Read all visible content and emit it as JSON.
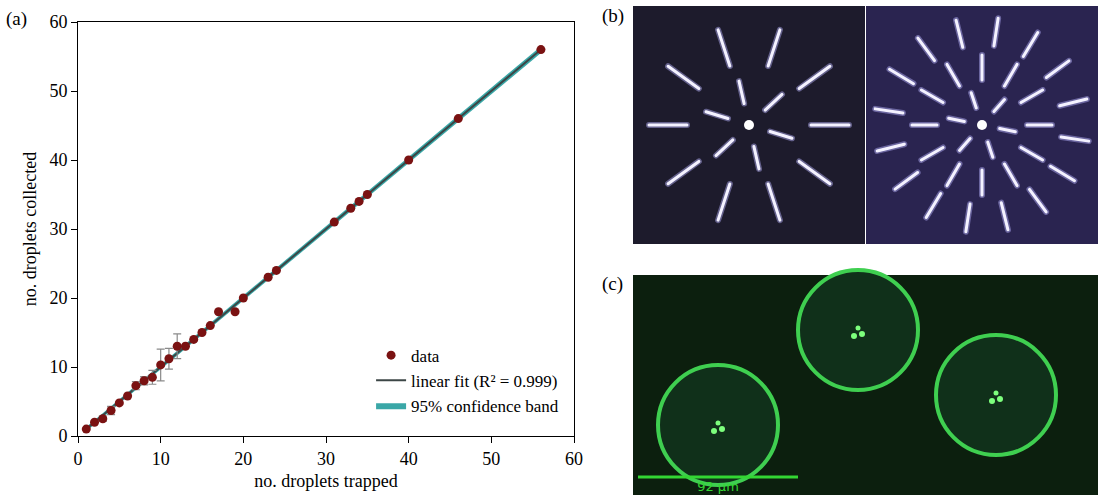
{
  "chart_data": {
    "type": "scatter",
    "annotations": [
      "(a)"
    ],
    "x_label": "no. droplets trapped",
    "y_label": "no. droplets collected",
    "xlim": [
      0,
      60
    ],
    "ylim": [
      0,
      60
    ],
    "xticks": [
      0,
      10,
      20,
      30,
      40,
      50,
      60
    ],
    "yticks": [
      0,
      10,
      20,
      30,
      40,
      50,
      60
    ],
    "grid": false,
    "legend": "bottom right",
    "series": [
      {
        "name": "data",
        "type": "scatter",
        "marker": "circle",
        "color": "#7a1212",
        "x": [
          1,
          2,
          3,
          4,
          5,
          6,
          7,
          8,
          9,
          10,
          11,
          12,
          13,
          14,
          15,
          16,
          17,
          19,
          20,
          23,
          24,
          31,
          33,
          34,
          35,
          40,
          46,
          56
        ],
        "values": [
          1,
          2,
          2.5,
          3.7,
          4.8,
          5.8,
          7.3,
          8,
          8.5,
          10.3,
          11.2,
          13,
          13,
          14,
          15,
          16,
          18,
          18,
          20,
          23,
          24,
          31,
          33,
          34,
          35,
          40,
          46,
          56
        ],
        "error": [
          null,
          null,
          0.4,
          0.6,
          null,
          null,
          0.6,
          0.6,
          1,
          2.3,
          1.5,
          1.8,
          null,
          null,
          null,
          null,
          null,
          null,
          null,
          null,
          null,
          null,
          null,
          null,
          null,
          null,
          null,
          null
        ]
      },
      {
        "name": "linear fit (R² = 0.999)",
        "type": "line",
        "line_style": "solid",
        "color": "#3c4646",
        "x": [
          1,
          56
        ],
        "values": [
          1,
          56
        ]
      },
      {
        "name": "95% confidence band",
        "type": "area",
        "color": "#3aa7a7",
        "x": [
          1,
          56
        ],
        "lower": [
          0.7,
          55.5
        ],
        "upper": [
          1.3,
          56.5
        ]
      }
    ]
  },
  "images": [
    {
      "label": "(b)"
    },
    {
      "label": "(c)",
      "scale_bar": "92 μm"
    }
  ]
}
